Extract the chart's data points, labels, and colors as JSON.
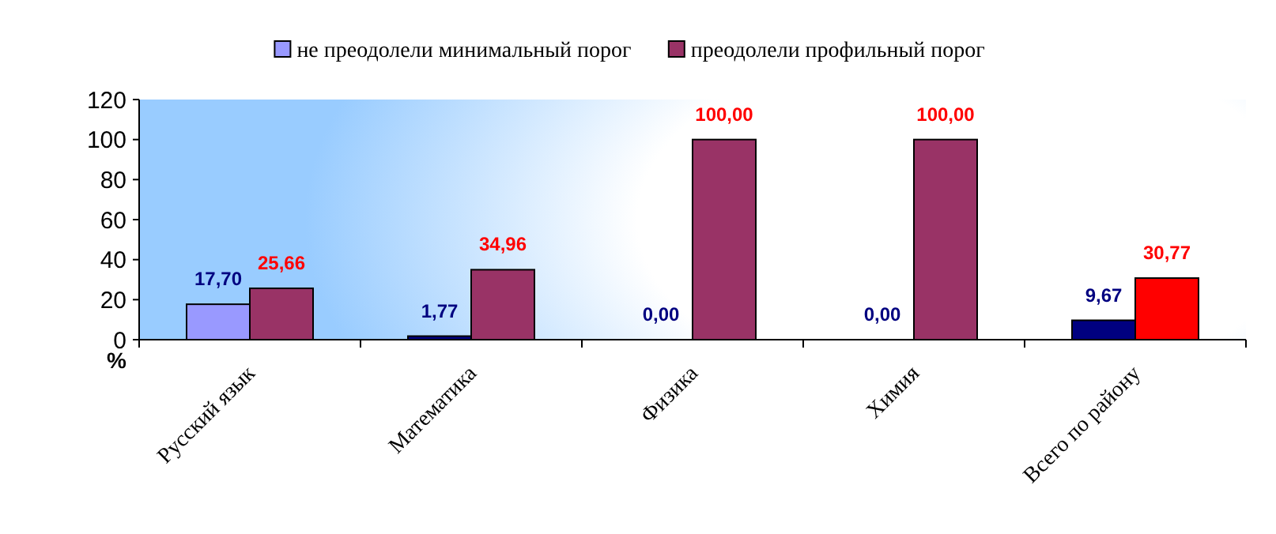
{
  "chart_data": {
    "type": "bar",
    "ylabel": "%",
    "categories": [
      "Русский язык",
      "Математика",
      "Физика",
      "Химия",
      "Всего по району"
    ],
    "series": [
      {
        "name": "не преодолели минимальный порог",
        "color": "#9999ff",
        "colors": [
          "#9999ff",
          "#000080",
          "#000080",
          "#000080",
          "#000080"
        ],
        "values": [
          17.7,
          1.77,
          0,
          0,
          9.67
        ],
        "value_labels": [
          "17,70",
          "1,77",
          "0,00",
          "0,00",
          "9,67"
        ]
      },
      {
        "name": "преодолели профильный порог",
        "color": "#993366",
        "colors": [
          "#993366",
          "#993366",
          "#993366",
          "#993366",
          "#ff0000"
        ],
        "values": [
          25.66,
          34.96,
          100,
          100,
          30.77
        ],
        "value_labels": [
          "25,66",
          "34,96",
          "100,00",
          "100,00",
          "30,77"
        ]
      }
    ],
    "ylim": [
      0,
      120
    ],
    "yticks": [
      0,
      20,
      40,
      60,
      80,
      100,
      120
    ],
    "grid": false,
    "legend": "top"
  }
}
